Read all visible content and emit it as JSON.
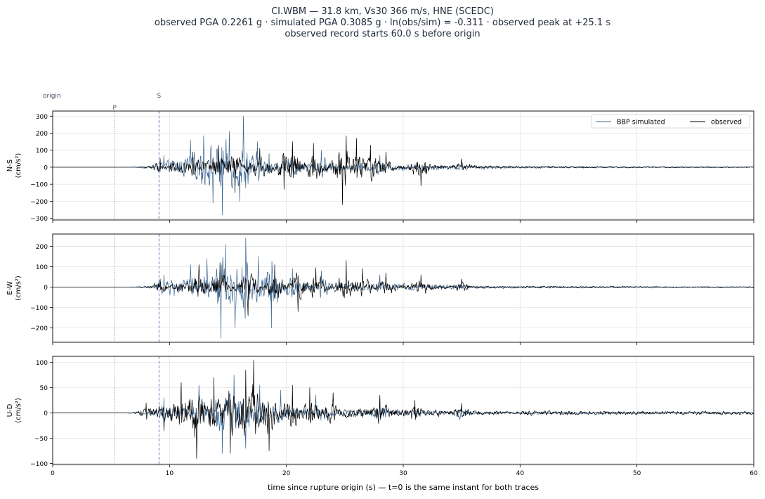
{
  "title_lines": [
    "CI.WBM  —  31.8 km, Vs30 366 m/s, HNE (SCEDC)",
    "observed PGA 0.2261 g   ·   simulated PGA 0.3085 g   ·   ln(obs/sim) = -0.311   ·   observed peak at +25.1 s",
    "observed record starts 60.0 s before origin"
  ],
  "colors": {
    "simulated": "#3b6591",
    "observed": "#000000",
    "p_marker": "#8a8f98",
    "s_marker": "#6a7fb8",
    "grid": "#e3e3e3"
  },
  "chart_data": {
    "type": "line",
    "xlabel": "time since rupture origin (s)   —   t=0 is the same instant for both traces",
    "xlim": [
      0,
      60
    ],
    "xticks": [
      0,
      10,
      20,
      30,
      40,
      50,
      60
    ],
    "markers": [
      {
        "label": "origin",
        "t": 0,
        "style": "none"
      },
      {
        "label": "P",
        "t": 5.3,
        "style": "dotted"
      },
      {
        "label": "S",
        "t": 9.1,
        "style": "dashed"
      }
    ],
    "legend": {
      "placement": "top-right",
      "entries": [
        "BBP simulated",
        "observed"
      ]
    },
    "panels": [
      {
        "ylabel": [
          "N-S",
          "(cm/s²)"
        ],
        "ylim": [
          -310,
          330
        ],
        "yticks": [
          -300,
          -200,
          -100,
          0,
          100,
          200,
          300
        ],
        "series": [
          {
            "name": "BBP simulated",
            "onset": 6.5,
            "peaks": [
              [
                9.5,
                70
              ],
              [
                11.8,
                160
              ],
              [
                12.9,
                185
              ],
              [
                13.7,
                -210
              ],
              [
                14.5,
                -280
              ],
              [
                15.1,
                210
              ],
              [
                16.0,
                -200
              ],
              [
                16.3,
                300
              ],
              [
                17.5,
                150
              ],
              [
                18.5,
                80
              ],
              [
                20.5,
                120
              ],
              [
                23.0,
                100
              ],
              [
                28.0,
                70
              ],
              [
                35.0,
                40
              ]
            ],
            "tail": [
              [
                40,
                12
              ],
              [
                50,
                8
              ],
              [
                60,
                6
              ]
            ],
            "peak_abs": 300
          },
          {
            "name": "observed",
            "onset": 7.0,
            "peaks": [
              [
                9.2,
                50
              ],
              [
                12.0,
                90
              ],
              [
                14.2,
                130
              ],
              [
                15.6,
                -150
              ],
              [
                17.7,
                110
              ],
              [
                19.8,
                -130
              ],
              [
                20.5,
                150
              ],
              [
                22.3,
                140
              ],
              [
                24.8,
                -220
              ],
              [
                25.1,
                185
              ],
              [
                26.0,
                170
              ],
              [
                27.2,
                130
              ],
              [
                28.5,
                90
              ],
              [
                31.5,
                -110
              ],
              [
                35.0,
                50
              ]
            ],
            "tail": [
              [
                40,
                10
              ],
              [
                50,
                7
              ],
              [
                60,
                5
              ]
            ],
            "peak_abs": 220
          }
        ]
      },
      {
        "ylabel": [
          "E-W",
          "(cm/s²)"
        ],
        "ylim": [
          -270,
          260
        ],
        "yticks": [
          -200,
          -100,
          0,
          100,
          200
        ],
        "series": [
          {
            "name": "BBP simulated",
            "onset": 6.5,
            "peaks": [
              [
                9.5,
                60
              ],
              [
                11.8,
                110
              ],
              [
                13.2,
                140
              ],
              [
                14.4,
                -250
              ],
              [
                14.8,
                210
              ],
              [
                15.6,
                -200
              ],
              [
                16.5,
                240
              ],
              [
                17.6,
                150
              ],
              [
                18.7,
                -200
              ],
              [
                20.5,
                90
              ],
              [
                23.0,
                80
              ],
              [
                28.0,
                60
              ],
              [
                35.0,
                30
              ]
            ],
            "tail": [
              [
                40,
                10
              ],
              [
                50,
                7
              ],
              [
                60,
                5
              ]
            ],
            "peak_abs": 250
          },
          {
            "name": "observed",
            "onset": 7.0,
            "peaks": [
              [
                9.2,
                40
              ],
              [
                12.5,
                110
              ],
              [
                14.3,
                120
              ],
              [
                16.7,
                -140
              ],
              [
                19.0,
                110
              ],
              [
                21.0,
                -120
              ],
              [
                22.5,
                95
              ],
              [
                25.1,
                130
              ],
              [
                26.5,
                90
              ],
              [
                28.5,
                70
              ],
              [
                31.5,
                60
              ],
              [
                35.0,
                40
              ]
            ],
            "tail": [
              [
                40,
                10
              ],
              [
                50,
                6
              ],
              [
                60,
                5
              ]
            ],
            "peak_abs": 140
          }
        ]
      },
      {
        "ylabel": [
          "U-D",
          "(cm/s²)"
        ],
        "ylim": [
          -102,
          112
        ],
        "yticks": [
          -100,
          -50,
          0,
          50,
          100
        ],
        "series": [
          {
            "name": "BBP simulated",
            "onset": 6.3,
            "peaks": [
              [
                9.5,
                30
              ],
              [
                12.5,
                55
              ],
              [
                14.5,
                -80
              ],
              [
                15.5,
                75
              ],
              [
                16.5,
                -70
              ],
              [
                17.7,
                55
              ],
              [
                19.5,
                45
              ],
              [
                22.5,
                35
              ],
              [
                28.0,
                30
              ],
              [
                35.0,
                20
              ]
            ],
            "tail": [
              [
                40,
                5
              ],
              [
                50,
                3
              ],
              [
                60,
                3
              ]
            ],
            "peak_abs": 85
          },
          {
            "name": "observed",
            "onset": 6.2,
            "peaks": [
              [
                8.0,
                20
              ],
              [
                9.5,
                -35
              ],
              [
                11.0,
                60
              ],
              [
                12.3,
                -90
              ],
              [
                13.8,
                70
              ],
              [
                15.2,
                -80
              ],
              [
                16.5,
                85
              ],
              [
                17.2,
                105
              ],
              [
                18.5,
                -75
              ],
              [
                20.5,
                55
              ],
              [
                22.0,
                50
              ],
              [
                24.0,
                40
              ],
              [
                28.0,
                35
              ],
              [
                31.0,
                25
              ],
              [
                35.0,
                18
              ]
            ],
            "tail": [
              [
                40,
                8
              ],
              [
                50,
                6
              ],
              [
                60,
                6
              ]
            ],
            "peak_abs": 105
          }
        ]
      }
    ]
  }
}
